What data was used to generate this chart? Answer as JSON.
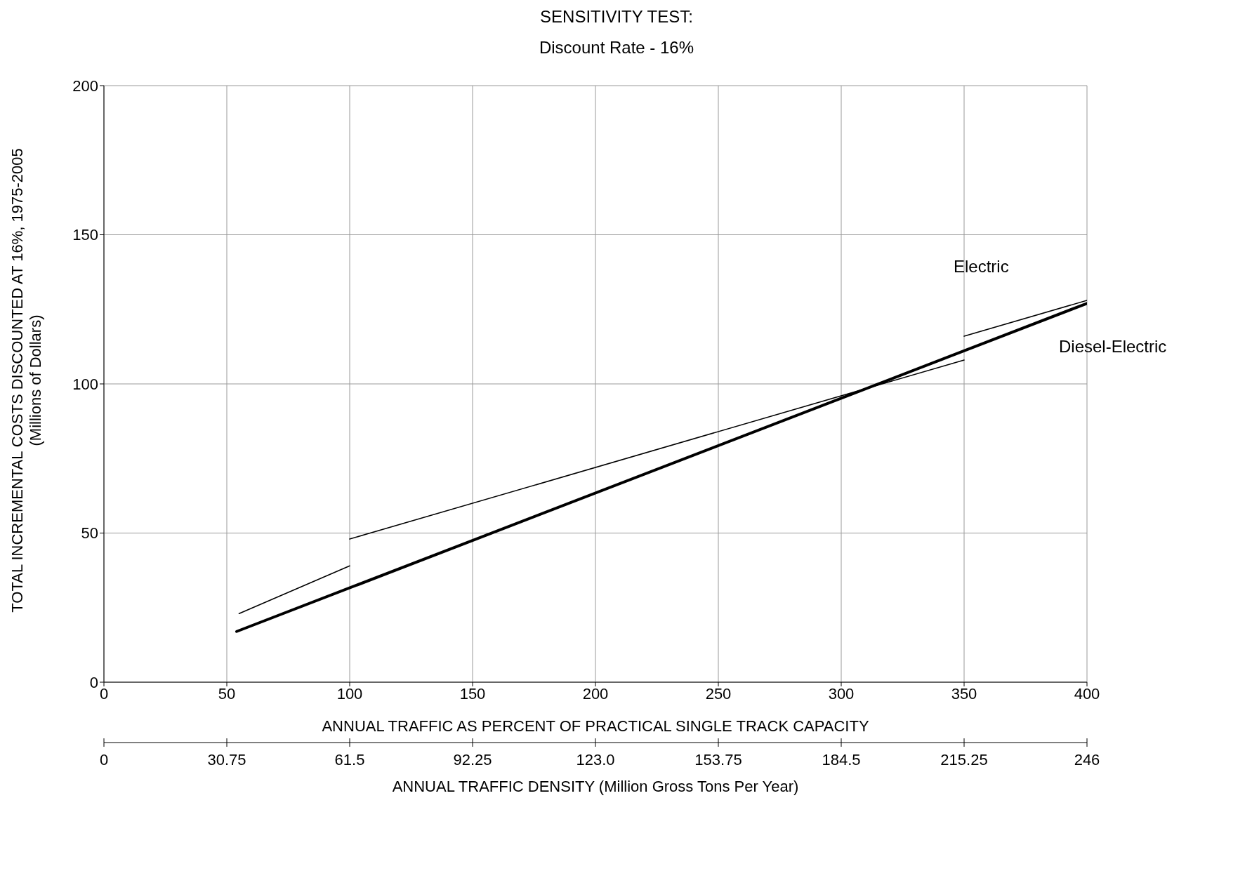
{
  "chart_data": {
    "type": "line",
    "title": "SENSITIVITY TEST:",
    "subtitle": "Discount Rate - 16%",
    "xlabel": "ANNUAL TRAFFIC AS PERCENT OF PRACTICAL SINGLE TRACK CAPACITY",
    "x2label": "ANNUAL TRAFFIC DENSITY  (Million Gross Tons Per Year)",
    "ylabel": "TOTAL INCREMENTAL COSTS DISCOUNTED AT 16%, 1975-2005\n(Millions of Dollars)",
    "xlim": [
      0,
      400
    ],
    "xticks": [
      0,
      50,
      100,
      150,
      200,
      250,
      300,
      350,
      400
    ],
    "x2lim": [
      0,
      246
    ],
    "x2ticks": [
      0,
      30.75,
      61.5,
      92.25,
      {
        "value": 123,
        "label": "123.0"
      },
      153.75,
      184.5,
      215.25,
      246
    ],
    "ylim": [
      0,
      200
    ],
    "yticks": [
      0,
      50,
      100,
      150,
      200
    ],
    "grid": true,
    "marker": "none",
    "line_style": "solid",
    "series": [
      {
        "name": "Electric",
        "color": "#000000",
        "x": [
          55,
          100,
          null,
          100,
          350,
          null,
          350,
          400
        ],
        "values": [
          23,
          39,
          null,
          48,
          108,
          null,
          116,
          128
        ]
      },
      {
        "name": "Diesel-Electric",
        "color": "#000000",
        "x": [
          54,
          400
        ],
        "values": [
          17,
          127
        ]
      }
    ]
  }
}
